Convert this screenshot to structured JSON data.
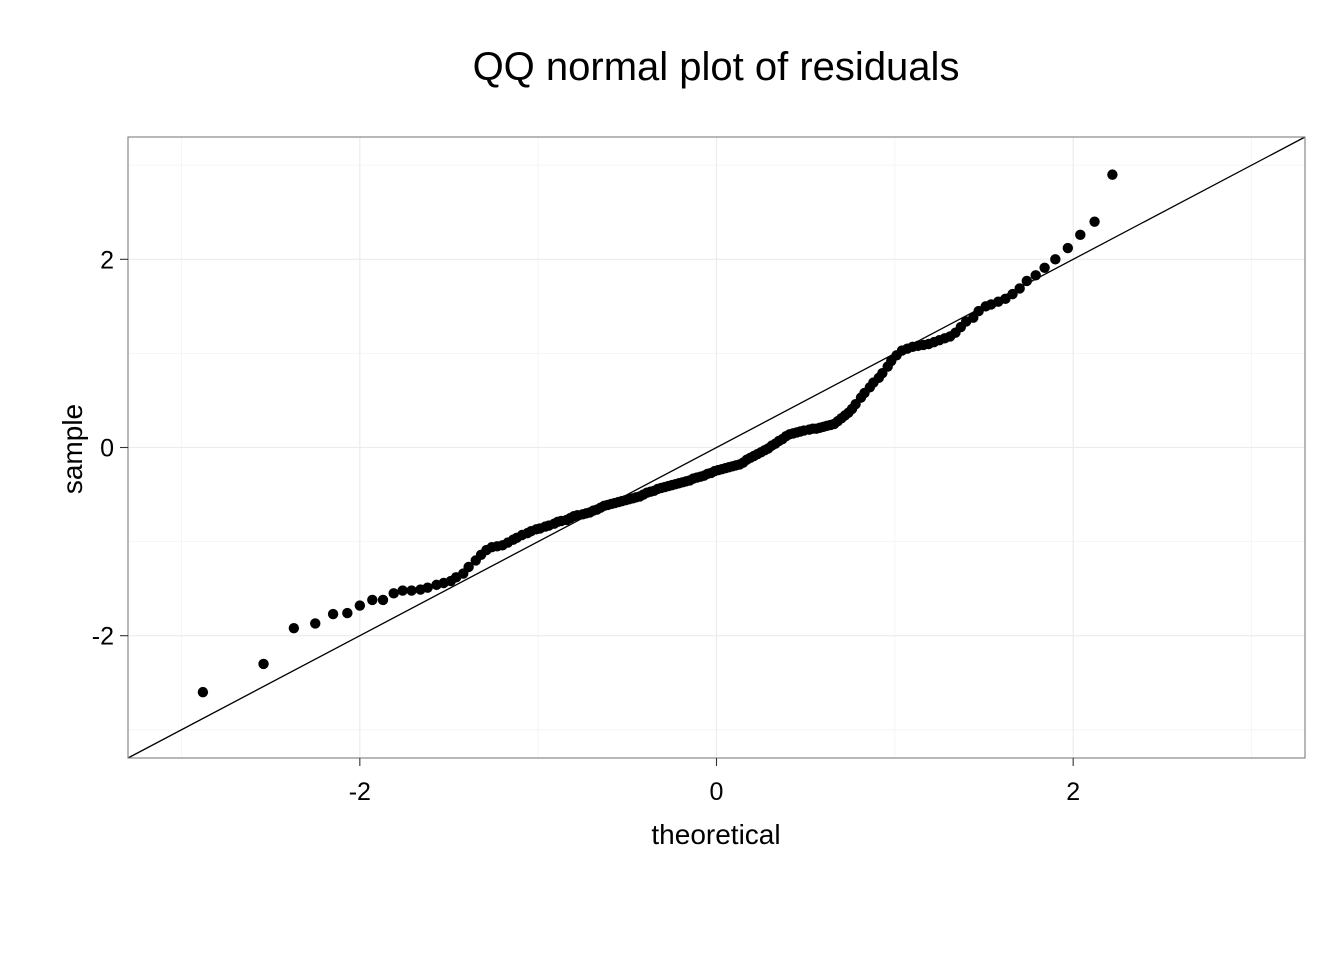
{
  "chart_data": {
    "type": "scatter",
    "title": "QQ normal plot of residuals",
    "xlabel": "theoretical",
    "ylabel": "sample",
    "xlim": [
      -3.3,
      3.3
    ],
    "ylim": [
      -3.3,
      3.3
    ],
    "xticks": [
      -2,
      0,
      2
    ],
    "yticks": [
      -2,
      0,
      2
    ],
    "xtick_labels": [
      "-2",
      "0",
      "2"
    ],
    "ytick_labels": [
      "-2",
      "0",
      "2"
    ],
    "grid": true,
    "reference_line": {
      "intercept": 0,
      "slope": 1
    },
    "anchor_points": [
      [
        -2.9,
        -2.6
      ],
      [
        -2.55,
        -2.3
      ],
      [
        -2.4,
        -1.92
      ],
      [
        -2.25,
        -1.87
      ],
      [
        -2.1,
        -1.77
      ],
      [
        -2.0,
        -1.76
      ],
      [
        -1.85,
        -1.68
      ],
      [
        -1.75,
        -1.62
      ],
      [
        -1.6,
        -1.55
      ],
      [
        -1.45,
        -1.45
      ],
      [
        -1.35,
        -1.2
      ],
      [
        -1.25,
        -1.05
      ],
      [
        -1.0,
        -0.85
      ],
      [
        -0.75,
        -0.72
      ],
      [
        -0.55,
        -0.6
      ],
      [
        -0.3,
        -0.45
      ],
      [
        0.0,
        -0.2
      ],
      [
        0.2,
        -0.05
      ],
      [
        0.45,
        0.15
      ],
      [
        0.6,
        0.22
      ],
      [
        0.75,
        0.38
      ],
      [
        0.95,
        0.8
      ],
      [
        1.05,
        1.05
      ],
      [
        1.35,
        1.3
      ],
      [
        1.5,
        1.5
      ],
      [
        1.65,
        1.65
      ],
      [
        1.8,
        1.83
      ],
      [
        1.9,
        2.0
      ],
      [
        2.0,
        2.2
      ],
      [
        2.1,
        2.35
      ],
      [
        2.25,
        2.9
      ]
    ],
    "points": [
      [
        -2.88,
        -2.6
      ],
      [
        -2.54,
        -2.3
      ],
      [
        -2.37,
        -1.92
      ],
      [
        -2.25,
        -1.87
      ],
      [
        -2.15,
        -1.77
      ],
      [
        -2.07,
        -1.76
      ],
      [
        -2.0,
        -1.68
      ],
      [
        -1.93,
        -1.62
      ],
      [
        -1.87,
        -1.62
      ],
      [
        -1.81,
        -1.55
      ],
      [
        -1.76,
        -1.52
      ],
      [
        -1.71,
        -1.52
      ],
      [
        -1.66,
        -1.51
      ],
      [
        -1.62,
        -1.49
      ],
      [
        -1.57,
        -1.46
      ],
      [
        -1.53,
        -1.44
      ],
      [
        -1.49,
        -1.42
      ],
      [
        -1.46,
        -1.38
      ],
      [
        -1.42,
        -1.34
      ],
      [
        -1.39,
        -1.27
      ],
      [
        -1.35,
        -1.2
      ],
      [
        -1.32,
        -1.14
      ],
      [
        -1.29,
        -1.09
      ],
      [
        -1.26,
        -1.06
      ],
      [
        -1.23,
        -1.05
      ],
      [
        -1.2,
        -1.04
      ],
      [
        -1.17,
        -1.01
      ],
      [
        -1.14,
        -0.98
      ],
      [
        -1.12,
        -0.96
      ],
      [
        -1.09,
        -0.93
      ],
      [
        -1.06,
        -0.91
      ],
      [
        -1.04,
        -0.89
      ],
      [
        -1.01,
        -0.87
      ],
      [
        -0.99,
        -0.86
      ],
      [
        -0.96,
        -0.84
      ],
      [
        -0.94,
        -0.83
      ],
      [
        -0.91,
        -0.81
      ],
      [
        -0.89,
        -0.79
      ],
      [
        -0.87,
        -0.78
      ],
      [
        -0.84,
        -0.77
      ],
      [
        -0.82,
        -0.75
      ],
      [
        -0.8,
        -0.73
      ],
      [
        -0.78,
        -0.72
      ],
      [
        -0.75,
        -0.71
      ],
      [
        -0.73,
        -0.7
      ],
      [
        -0.71,
        -0.69
      ],
      [
        -0.69,
        -0.67
      ],
      [
        -0.67,
        -0.66
      ],
      [
        -0.65,
        -0.64
      ],
      [
        -0.63,
        -0.62
      ],
      [
        -0.61,
        -0.61
      ],
      [
        -0.59,
        -0.6
      ],
      [
        -0.57,
        -0.59
      ],
      [
        -0.55,
        -0.58
      ],
      [
        -0.53,
        -0.57
      ],
      [
        -0.51,
        -0.56
      ],
      [
        -0.49,
        -0.55
      ],
      [
        -0.47,
        -0.54
      ],
      [
        -0.45,
        -0.53
      ],
      [
        -0.43,
        -0.52
      ],
      [
        -0.41,
        -0.5
      ],
      [
        -0.39,
        -0.48
      ],
      [
        -0.37,
        -0.47
      ],
      [
        -0.35,
        -0.46
      ],
      [
        -0.33,
        -0.44
      ],
      [
        -0.31,
        -0.43
      ],
      [
        -0.29,
        -0.42
      ],
      [
        -0.27,
        -0.41
      ],
      [
        -0.25,
        -0.4
      ],
      [
        -0.23,
        -0.39
      ],
      [
        -0.21,
        -0.38
      ],
      [
        -0.19,
        -0.37
      ],
      [
        -0.17,
        -0.36
      ],
      [
        -0.15,
        -0.35
      ],
      [
        -0.13,
        -0.33
      ],
      [
        -0.11,
        -0.32
      ],
      [
        -0.09,
        -0.31
      ],
      [
        -0.07,
        -0.3
      ],
      [
        -0.05,
        -0.28
      ],
      [
        -0.03,
        -0.27
      ],
      [
        -0.01,
        -0.25
      ],
      [
        0.01,
        -0.24
      ],
      [
        0.03,
        -0.23
      ],
      [
        0.05,
        -0.22
      ],
      [
        0.07,
        -0.21
      ],
      [
        0.09,
        -0.2
      ],
      [
        0.11,
        -0.19
      ],
      [
        0.13,
        -0.18
      ],
      [
        0.15,
        -0.16
      ],
      [
        0.17,
        -0.13
      ],
      [
        0.19,
        -0.11
      ],
      [
        0.21,
        -0.09
      ],
      [
        0.23,
        -0.07
      ],
      [
        0.25,
        -0.05
      ],
      [
        0.27,
        -0.03
      ],
      [
        0.29,
        -0.01
      ],
      [
        0.31,
        0.02
      ],
      [
        0.33,
        0.04
      ],
      [
        0.35,
        0.07
      ],
      [
        0.37,
        0.09
      ],
      [
        0.39,
        0.12
      ],
      [
        0.41,
        0.14
      ],
      [
        0.43,
        0.15
      ],
      [
        0.45,
        0.16
      ],
      [
        0.47,
        0.17
      ],
      [
        0.49,
        0.18
      ],
      [
        0.52,
        0.19
      ],
      [
        0.54,
        0.2
      ],
      [
        0.56,
        0.2
      ],
      [
        0.58,
        0.21
      ],
      [
        0.6,
        0.22
      ],
      [
        0.62,
        0.23
      ],
      [
        0.64,
        0.24
      ],
      [
        0.66,
        0.25
      ],
      [
        0.68,
        0.28
      ],
      [
        0.7,
        0.31
      ],
      [
        0.72,
        0.34
      ],
      [
        0.74,
        0.37
      ],
      [
        0.76,
        0.41
      ],
      [
        0.78,
        0.46
      ],
      [
        0.81,
        0.53
      ],
      [
        0.83,
        0.58
      ],
      [
        0.86,
        0.64
      ],
      [
        0.88,
        0.69
      ],
      [
        0.91,
        0.74
      ],
      [
        0.93,
        0.79
      ],
      [
        0.96,
        0.86
      ],
      [
        0.98,
        0.92
      ],
      [
        1.01,
        0.98
      ],
      [
        1.04,
        1.03
      ],
      [
        1.07,
        1.05
      ],
      [
        1.1,
        1.07
      ],
      [
        1.13,
        1.08
      ],
      [
        1.16,
        1.09
      ],
      [
        1.19,
        1.1
      ],
      [
        1.22,
        1.12
      ],
      [
        1.25,
        1.14
      ],
      [
        1.28,
        1.16
      ],
      [
        1.31,
        1.18
      ],
      [
        1.34,
        1.22
      ],
      [
        1.37,
        1.28
      ],
      [
        1.4,
        1.34
      ],
      [
        1.44,
        1.38
      ],
      [
        1.47,
        1.45
      ],
      [
        1.51,
        1.5
      ],
      [
        1.54,
        1.52
      ],
      [
        1.58,
        1.55
      ],
      [
        1.62,
        1.58
      ],
      [
        1.66,
        1.63
      ],
      [
        1.7,
        1.69
      ],
      [
        1.74,
        1.77
      ],
      [
        1.79,
        1.83
      ],
      [
        1.84,
        1.91
      ],
      [
        1.9,
        2.0
      ],
      [
        1.97,
        2.12
      ],
      [
        2.04,
        2.26
      ],
      [
        2.12,
        2.4
      ],
      [
        2.22,
        2.9
      ]
    ]
  }
}
